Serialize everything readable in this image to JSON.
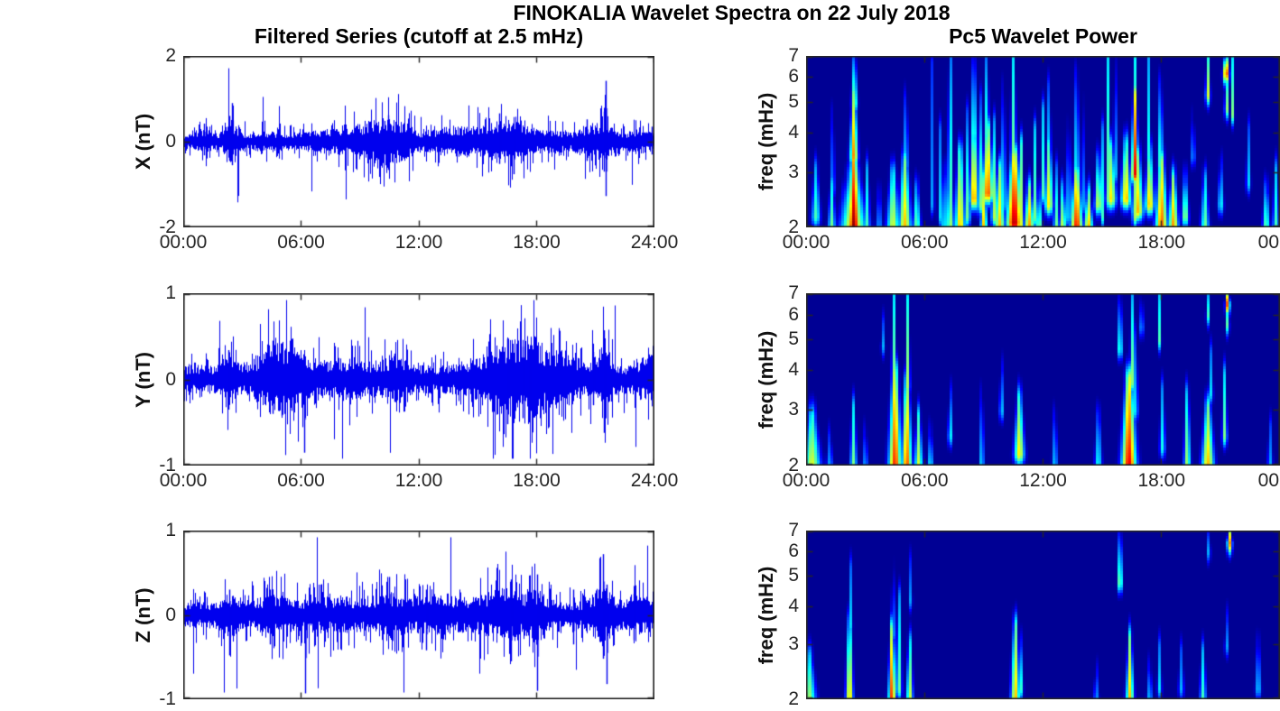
{
  "suptitle": "FINOKALIA Wavelet Spectra on 22 July 2018",
  "columns": {
    "left_title": "Filtered Series (cutoff at 2.5 mHz)",
    "right_title": "Pc5 Wavelet Power"
  },
  "time_axis": {
    "hours": [
      0,
      6,
      12,
      18,
      24
    ],
    "left_tick_labels": [
      "00:00",
      "06:00",
      "12:00",
      "18:00",
      "24:00"
    ],
    "right_tick_labels": [
      "00:00",
      "06:00",
      "12:00",
      "18:00",
      "00"
    ]
  },
  "colors": {
    "series_line": "#0000ee",
    "axis": "#262626",
    "title": "#000000",
    "heatmap_background": "#000094",
    "colormap": "jet",
    "background": "#ffffff"
  },
  "formats": {
    "burst": "[t_hours, amplitude_nT, sigma_hours] gaussian noise-envelope bursts",
    "spike": "[t_hours, peak_up_nT, peak_down_nT] isolated spikes",
    "feature": "[t_hours, f_low_mHz, f_high_mHz, intensity_0to1, time_sigma_hours] wavelet-power blobs"
  },
  "chart_data": [
    {
      "panel": "x-filtered-series",
      "type": "line",
      "ylabel": "X (nT)",
      "ylim": [
        -2,
        2
      ],
      "yticks": [
        2,
        0,
        -2
      ],
      "xlim_hours": [
        0,
        24
      ],
      "x_tick_labels_visible": true,
      "noise_base": 0.13,
      "bursts": [
        [
          1.0,
          0.1,
          0.3
        ],
        [
          2.45,
          0.22,
          0.28
        ],
        [
          4.3,
          0.06,
          0.5
        ],
        [
          7.6,
          0.08,
          1.2
        ],
        [
          9.3,
          0.12,
          0.7
        ],
        [
          10.4,
          0.22,
          0.7
        ],
        [
          11.4,
          0.1,
          0.4
        ],
        [
          13.6,
          0.12,
          0.8
        ],
        [
          16.0,
          0.18,
          1.1
        ],
        [
          17.0,
          0.16,
          0.6
        ],
        [
          19.0,
          0.06,
          0.6
        ],
        [
          20.6,
          0.14,
          0.4
        ],
        [
          21.5,
          0.22,
          0.35
        ],
        [
          23.2,
          0.08,
          0.5
        ]
      ],
      "spikes": [
        [
          1.05,
          0.42,
          -0.32
        ],
        [
          2.35,
          0.6,
          -0.45
        ],
        [
          2.5,
          0.9,
          -0.55
        ],
        [
          10.2,
          0.5,
          -0.5
        ],
        [
          10.45,
          0.62,
          -0.66
        ],
        [
          16.1,
          0.66,
          -0.52
        ],
        [
          16.85,
          0.42,
          -0.76
        ],
        [
          20.6,
          0.52,
          -0.45
        ],
        [
          21.45,
          0.7,
          -0.7
        ],
        [
          21.55,
          1.42,
          -1.27
        ],
        [
          23.9,
          0.35,
          -0.3
        ]
      ]
    },
    {
      "panel": "x-wavelet-power",
      "type": "heatmap",
      "ylabel": "freq (mHz)",
      "yscale": "log",
      "flim_mHz": [
        2,
        7
      ],
      "yticks": [
        7,
        6,
        5,
        4,
        3,
        2
      ],
      "xlim_hours": [
        0,
        24
      ],
      "x_tick_labels_visible": true,
      "colormap": "jet",
      "features": [
        [
          0.5,
          2.2,
          3.0,
          0.45,
          0.15
        ],
        [
          1.3,
          2.0,
          2.7,
          0.5,
          0.13
        ],
        [
          1.35,
          2.7,
          4.5,
          0.3,
          0.08
        ],
        [
          1.9,
          2.0,
          2.5,
          0.35,
          0.1
        ],
        [
          2.4,
          2.0,
          2.9,
          0.7,
          0.45
        ],
        [
          2.42,
          2.0,
          3.4,
          1.0,
          0.22
        ],
        [
          2.42,
          3.4,
          5.2,
          0.75,
          0.14
        ],
        [
          2.45,
          5.0,
          6.9,
          0.55,
          0.1
        ],
        [
          3.1,
          2.0,
          3.0,
          0.45,
          0.1
        ],
        [
          3.7,
          2.0,
          2.5,
          0.3,
          0.12
        ],
        [
          4.4,
          2.0,
          2.9,
          0.6,
          0.22
        ],
        [
          5.0,
          2.0,
          3.2,
          0.7,
          0.22
        ],
        [
          5.05,
          3.2,
          5.0,
          0.35,
          0.1
        ],
        [
          5.6,
          2.0,
          2.6,
          0.5,
          0.15
        ],
        [
          6.4,
          2.4,
          6.5,
          0.3,
          0.07
        ],
        [
          6.8,
          2.2,
          4.0,
          0.35,
          0.07
        ],
        [
          7.0,
          2.0,
          3.0,
          0.45,
          0.1
        ],
        [
          7.3,
          2.4,
          7.0,
          0.5,
          0.09
        ],
        [
          7.3,
          2.0,
          3.0,
          0.55,
          0.15
        ],
        [
          7.8,
          2.0,
          3.4,
          0.7,
          0.18
        ],
        [
          8.2,
          2.2,
          4.5,
          0.55,
          0.08
        ],
        [
          8.5,
          2.5,
          4.0,
          0.75,
          0.15
        ],
        [
          8.5,
          4.0,
          7.0,
          0.5,
          0.09
        ],
        [
          8.8,
          2.4,
          5.0,
          0.6,
          0.08
        ],
        [
          9.0,
          2.0,
          2.8,
          0.7,
          0.12
        ],
        [
          9.2,
          2.6,
          4.0,
          0.8,
          0.2
        ],
        [
          9.15,
          4.0,
          7.0,
          0.45,
          0.08
        ],
        [
          9.5,
          2.2,
          4.2,
          0.6,
          0.08
        ],
        [
          9.8,
          2.0,
          3.0,
          0.7,
          0.18
        ],
        [
          10.0,
          2.4,
          5.5,
          0.55,
          0.07
        ],
        [
          10.55,
          2.1,
          3.3,
          0.95,
          0.28
        ],
        [
          10.5,
          3.3,
          7.0,
          0.5,
          0.1
        ],
        [
          10.9,
          2.0,
          3.6,
          0.6,
          0.09
        ],
        [
          11.3,
          2.0,
          2.6,
          0.75,
          0.18
        ],
        [
          11.6,
          2.2,
          4.0,
          0.5,
          0.07
        ],
        [
          11.8,
          2.0,
          2.5,
          0.55,
          0.12
        ],
        [
          12.0,
          2.6,
          4.6,
          0.45,
          0.06
        ],
        [
          12.3,
          2.4,
          3.6,
          0.65,
          0.15
        ],
        [
          12.3,
          3.6,
          5.5,
          0.35,
          0.08
        ],
        [
          12.65,
          2.0,
          3.0,
          0.55,
          0.08
        ],
        [
          13.0,
          2.0,
          2.6,
          0.6,
          0.13
        ],
        [
          13.3,
          2.2,
          4.2,
          0.5,
          0.07
        ],
        [
          13.7,
          2.0,
          2.9,
          0.88,
          0.22
        ],
        [
          13.7,
          2.9,
          6.0,
          0.45,
          0.09
        ],
        [
          14.0,
          2.4,
          5.0,
          0.45,
          0.06
        ],
        [
          14.3,
          2.0,
          2.5,
          0.72,
          0.16
        ],
        [
          14.8,
          2.4,
          3.2,
          0.6,
          0.13
        ],
        [
          15.0,
          2.2,
          4.0,
          0.45,
          0.06
        ],
        [
          15.3,
          2.5,
          7.0,
          0.5,
          0.07
        ],
        [
          15.45,
          2.5,
          3.5,
          0.65,
          0.18
        ],
        [
          15.65,
          3.0,
          7.0,
          0.45,
          0.06
        ],
        [
          16.2,
          2.5,
          3.6,
          0.7,
          0.18
        ],
        [
          16.65,
          3.0,
          5.2,
          0.9,
          0.12
        ],
        [
          16.65,
          2.2,
          7.0,
          0.55,
          0.09
        ],
        [
          16.8,
          2.3,
          3.3,
          0.7,
          0.2
        ],
        [
          17.4,
          2.4,
          3.4,
          0.7,
          0.16
        ],
        [
          17.35,
          3.4,
          7.0,
          0.4,
          0.07
        ],
        [
          18.0,
          2.0,
          3.2,
          0.8,
          0.22
        ],
        [
          17.95,
          3.2,
          5.6,
          0.5,
          0.09
        ],
        [
          18.6,
          2.0,
          2.8,
          0.75,
          0.18
        ],
        [
          19.2,
          2.2,
          2.8,
          0.55,
          0.12
        ],
        [
          19.6,
          3.4,
          4.4,
          0.3,
          0.08
        ],
        [
          20.2,
          2.0,
          2.8,
          0.5,
          0.15
        ],
        [
          20.35,
          5.3,
          7.0,
          0.6,
          0.08
        ],
        [
          21.0,
          2.4,
          3.1,
          0.4,
          0.1
        ],
        [
          21.27,
          6.2,
          7.0,
          0.9,
          0.1
        ],
        [
          21.3,
          4.8,
          6.3,
          0.55,
          0.07
        ],
        [
          21.6,
          4.6,
          7.0,
          0.5,
          0.06
        ],
        [
          22.4,
          2.8,
          4.0,
          0.35,
          0.08
        ],
        [
          23.3,
          2.0,
          2.6,
          0.5,
          0.13
        ],
        [
          23.8,
          2.0,
          3.0,
          0.45,
          0.12
        ]
      ]
    },
    {
      "panel": "y-filtered-series",
      "type": "line",
      "ylabel": "Y (nT)",
      "ylim": [
        -1,
        1
      ],
      "yticks": [
        1,
        0,
        -1
      ],
      "xlim_hours": [
        0,
        24
      ],
      "x_tick_labels_visible": true,
      "noise_base": 0.12,
      "bursts": [
        [
          2.3,
          0.12,
          0.25
        ],
        [
          4.6,
          0.2,
          0.6
        ],
        [
          5.6,
          0.18,
          0.4
        ],
        [
          8.2,
          0.06,
          1.2
        ],
        [
          10.8,
          0.1,
          0.4
        ],
        [
          16.6,
          0.22,
          1.1
        ],
        [
          18.1,
          0.14,
          0.7
        ],
        [
          19.6,
          0.1,
          0.5
        ],
        [
          21.4,
          0.16,
          0.35
        ],
        [
          23.7,
          0.1,
          0.3
        ]
      ],
      "spikes": [
        [
          2.3,
          0.34,
          -0.35
        ],
        [
          4.55,
          0.45,
          -0.4
        ],
        [
          5.0,
          0.42,
          -0.42
        ],
        [
          5.55,
          0.47,
          -0.36
        ],
        [
          6.15,
          0.12,
          -0.85
        ],
        [
          10.8,
          0.3,
          -0.26
        ],
        [
          16.55,
          0.47,
          -0.52
        ],
        [
          17.3,
          0.38,
          -0.45
        ],
        [
          17.65,
          0.35,
          -0.5
        ],
        [
          20.9,
          0.32,
          -0.3
        ],
        [
          21.45,
          0.57,
          -0.62
        ],
        [
          23.9,
          0.28,
          -0.22
        ]
      ]
    },
    {
      "panel": "y-wavelet-power",
      "type": "heatmap",
      "ylabel": "freq (mHz)",
      "yscale": "log",
      "flim_mHz": [
        2,
        7
      ],
      "yticks": [
        7,
        6,
        5,
        4,
        3,
        2
      ],
      "xlim_hours": [
        0,
        24
      ],
      "x_tick_labels_visible": true,
      "colormap": "jet",
      "features": [
        [
          0.3,
          2.0,
          2.8,
          0.6,
          0.3
        ],
        [
          1.2,
          2.0,
          2.4,
          0.3,
          0.12
        ],
        [
          2.4,
          2.0,
          3.0,
          0.5,
          0.12
        ],
        [
          3.0,
          2.0,
          2.5,
          0.3,
          0.1
        ],
        [
          3.9,
          4.8,
          5.4,
          0.3,
          0.07
        ],
        [
          4.5,
          2.0,
          3.9,
          0.85,
          0.22
        ],
        [
          4.45,
          3.9,
          7.0,
          0.5,
          0.08
        ],
        [
          5.1,
          2.0,
          3.6,
          0.8,
          0.18
        ],
        [
          5.15,
          3.6,
          6.6,
          0.55,
          0.08
        ],
        [
          5.7,
          2.0,
          2.8,
          0.6,
          0.14
        ],
        [
          6.3,
          2.0,
          2.5,
          0.4,
          0.1
        ],
        [
          7.3,
          2.5,
          3.3,
          0.4,
          0.08
        ],
        [
          8.9,
          2.0,
          3.3,
          0.4,
          0.08
        ],
        [
          9.9,
          3.0,
          4.0,
          0.35,
          0.08
        ],
        [
          10.8,
          2.2,
          3.2,
          0.65,
          0.18
        ],
        [
          12.6,
          2.0,
          2.8,
          0.35,
          0.1
        ],
        [
          14.8,
          2.0,
          2.8,
          0.4,
          0.13
        ],
        [
          15.9,
          4.7,
          6.8,
          0.5,
          0.08
        ],
        [
          16.35,
          2.0,
          3.7,
          0.9,
          0.26
        ],
        [
          16.5,
          3.7,
          7.0,
          0.55,
          0.07
        ],
        [
          16.7,
          3.0,
          5.0,
          0.4,
          0.08
        ],
        [
          17.0,
          5.5,
          7.0,
          0.4,
          0.06
        ],
        [
          17.9,
          5.0,
          7.0,
          0.45,
          0.06
        ],
        [
          18.05,
          2.3,
          3.4,
          0.4,
          0.1
        ],
        [
          19.3,
          2.0,
          3.3,
          0.55,
          0.12
        ],
        [
          20.35,
          2.0,
          3.0,
          0.7,
          0.22
        ],
        [
          20.5,
          3.4,
          4.4,
          0.35,
          0.08
        ],
        [
          20.35,
          6.0,
          7.0,
          0.45,
          0.06
        ],
        [
          21.2,
          2.5,
          3.8,
          0.5,
          0.09
        ],
        [
          21.35,
          6.5,
          7.0,
          0.85,
          0.08
        ],
        [
          21.35,
          5.6,
          6.6,
          0.5,
          0.06
        ],
        [
          23.5,
          2.0,
          2.6,
          0.3,
          0.1
        ]
      ]
    },
    {
      "panel": "z-filtered-series",
      "type": "line",
      "ylabel": "Z (nT)",
      "ylim": [
        -1,
        1
      ],
      "yticks": [
        1,
        0,
        -1
      ],
      "xlim_hours": [
        0,
        24
      ],
      "x_tick_labels_visible": false,
      "noise_base": 0.11,
      "bursts": [
        [
          2.4,
          0.08,
          0.4
        ],
        [
          4.5,
          0.07,
          0.6
        ],
        [
          7.5,
          0.05,
          1.5
        ],
        [
          10.6,
          0.08,
          0.8
        ],
        [
          13.2,
          0.06,
          1.0
        ],
        [
          16.4,
          0.14,
          0.9
        ],
        [
          18.1,
          0.1,
          0.4
        ],
        [
          21.4,
          0.16,
          0.4
        ],
        [
          23.2,
          0.07,
          0.5
        ]
      ],
      "spikes": [
        [
          2.35,
          0.3,
          -0.48
        ],
        [
          4.4,
          0.3,
          -0.35
        ],
        [
          6.2,
          0.1,
          -0.93
        ],
        [
          10.5,
          0.45,
          -0.25
        ],
        [
          12.4,
          0.3,
          -0.42
        ],
        [
          16.7,
          0.42,
          -0.55
        ],
        [
          18.05,
          0.48,
          -0.9
        ],
        [
          19.9,
          0.3,
          -0.35
        ],
        [
          21.4,
          0.72,
          -0.52
        ],
        [
          21.6,
          0.36,
          -0.82
        ],
        [
          23.0,
          0.25,
          -0.3
        ]
      ]
    },
    {
      "panel": "z-wavelet-power",
      "type": "heatmap",
      "ylabel": "freq (mHz)",
      "yscale": "log",
      "flim_mHz": [
        2,
        7
      ],
      "yticks": [
        7,
        6,
        5,
        4,
        3,
        2
      ],
      "xlim_hours": [
        0,
        24
      ],
      "x_tick_labels_visible": false,
      "colormap": "jet",
      "features": [
        [
          0.15,
          2.0,
          2.7,
          0.55,
          0.25
        ],
        [
          2.2,
          2.0,
          3.5,
          0.7,
          0.13
        ],
        [
          2.25,
          3.5,
          5.2,
          0.35,
          0.07
        ],
        [
          4.35,
          2.0,
          3.3,
          0.85,
          0.13
        ],
        [
          4.4,
          3.3,
          5.4,
          0.4,
          0.06
        ],
        [
          4.7,
          2.2,
          4.2,
          0.5,
          0.1
        ],
        [
          5.25,
          2.0,
          3.0,
          0.6,
          0.12
        ],
        [
          5.3,
          4.2,
          5.4,
          0.3,
          0.06
        ],
        [
          10.6,
          2.0,
          3.4,
          0.7,
          0.16
        ],
        [
          10.85,
          2.2,
          3.0,
          0.5,
          0.09
        ],
        [
          14.7,
          2.0,
          2.4,
          0.3,
          0.1
        ],
        [
          15.9,
          4.8,
          7.0,
          0.6,
          0.08
        ],
        [
          16.4,
          2.0,
          3.1,
          0.7,
          0.14
        ],
        [
          17.4,
          2.0,
          2.5,
          0.35,
          0.1
        ],
        [
          17.9,
          2.2,
          2.9,
          0.35,
          0.08
        ],
        [
          19.0,
          2.2,
          2.8,
          0.3,
          0.1
        ],
        [
          20.1,
          2.0,
          2.8,
          0.45,
          0.12
        ],
        [
          20.4,
          6.0,
          7.0,
          0.35,
          0.06
        ],
        [
          21.3,
          3.0,
          3.6,
          0.3,
          0.07
        ],
        [
          21.45,
          6.4,
          7.0,
          0.75,
          0.09
        ],
        [
          22.9,
          2.2,
          3.0,
          0.35,
          0.1
        ]
      ]
    }
  ]
}
